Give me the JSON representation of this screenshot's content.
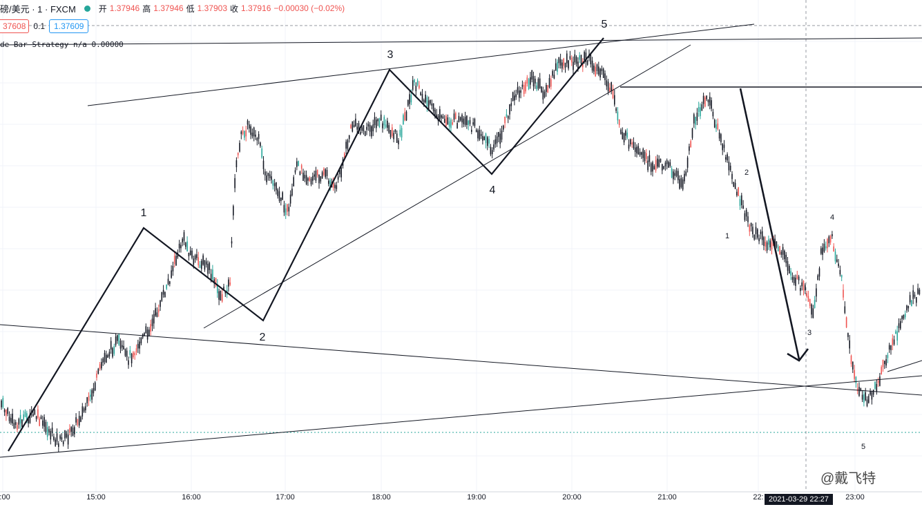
{
  "header": {
    "symbol": "磅/美元 · 1 · FXCM",
    "open_label": "开",
    "open": "1.37946",
    "high_label": "高",
    "high": "1.37946",
    "low_label": "低",
    "low": "1.37903",
    "close_label": "收",
    "close": "1.37916",
    "change": "−0.00030 (−0.02%)",
    "status_color": "#26a69a"
  },
  "quote": {
    "bid": "37608",
    "spread": "0.1",
    "ask": "1.37609"
  },
  "indicator": {
    "label": "de Bar Strategy  n/a 0.00000"
  },
  "x_axis": {
    "ticks": [
      "2:00",
      "15:00",
      "16:00",
      "17:00",
      "18:00",
      "19:00",
      "20:00",
      "21:00",
      "22:",
      "23:00"
    ],
    "crosshair": "2021-03-29   22:27"
  },
  "wave_labels_major": [
    "1",
    "2",
    "3",
    "4",
    "5"
  ],
  "wave_labels_minor": [
    "1",
    "2",
    "3",
    "4",
    "5"
  ],
  "watermark": "@戴飞特",
  "colors": {
    "up": "#26a69a",
    "down": "#ef5350",
    "line": "#131722",
    "grid": "#f0f3fa"
  },
  "chart_data": {
    "type": "candlestick",
    "title": "",
    "xlabel": "",
    "ylabel": "",
    "x": [
      "15:00",
      "16:00",
      "17:00",
      "18:00",
      "19:00",
      "20:00",
      "21:00",
      "22:00",
      "23:00"
    ]
  }
}
